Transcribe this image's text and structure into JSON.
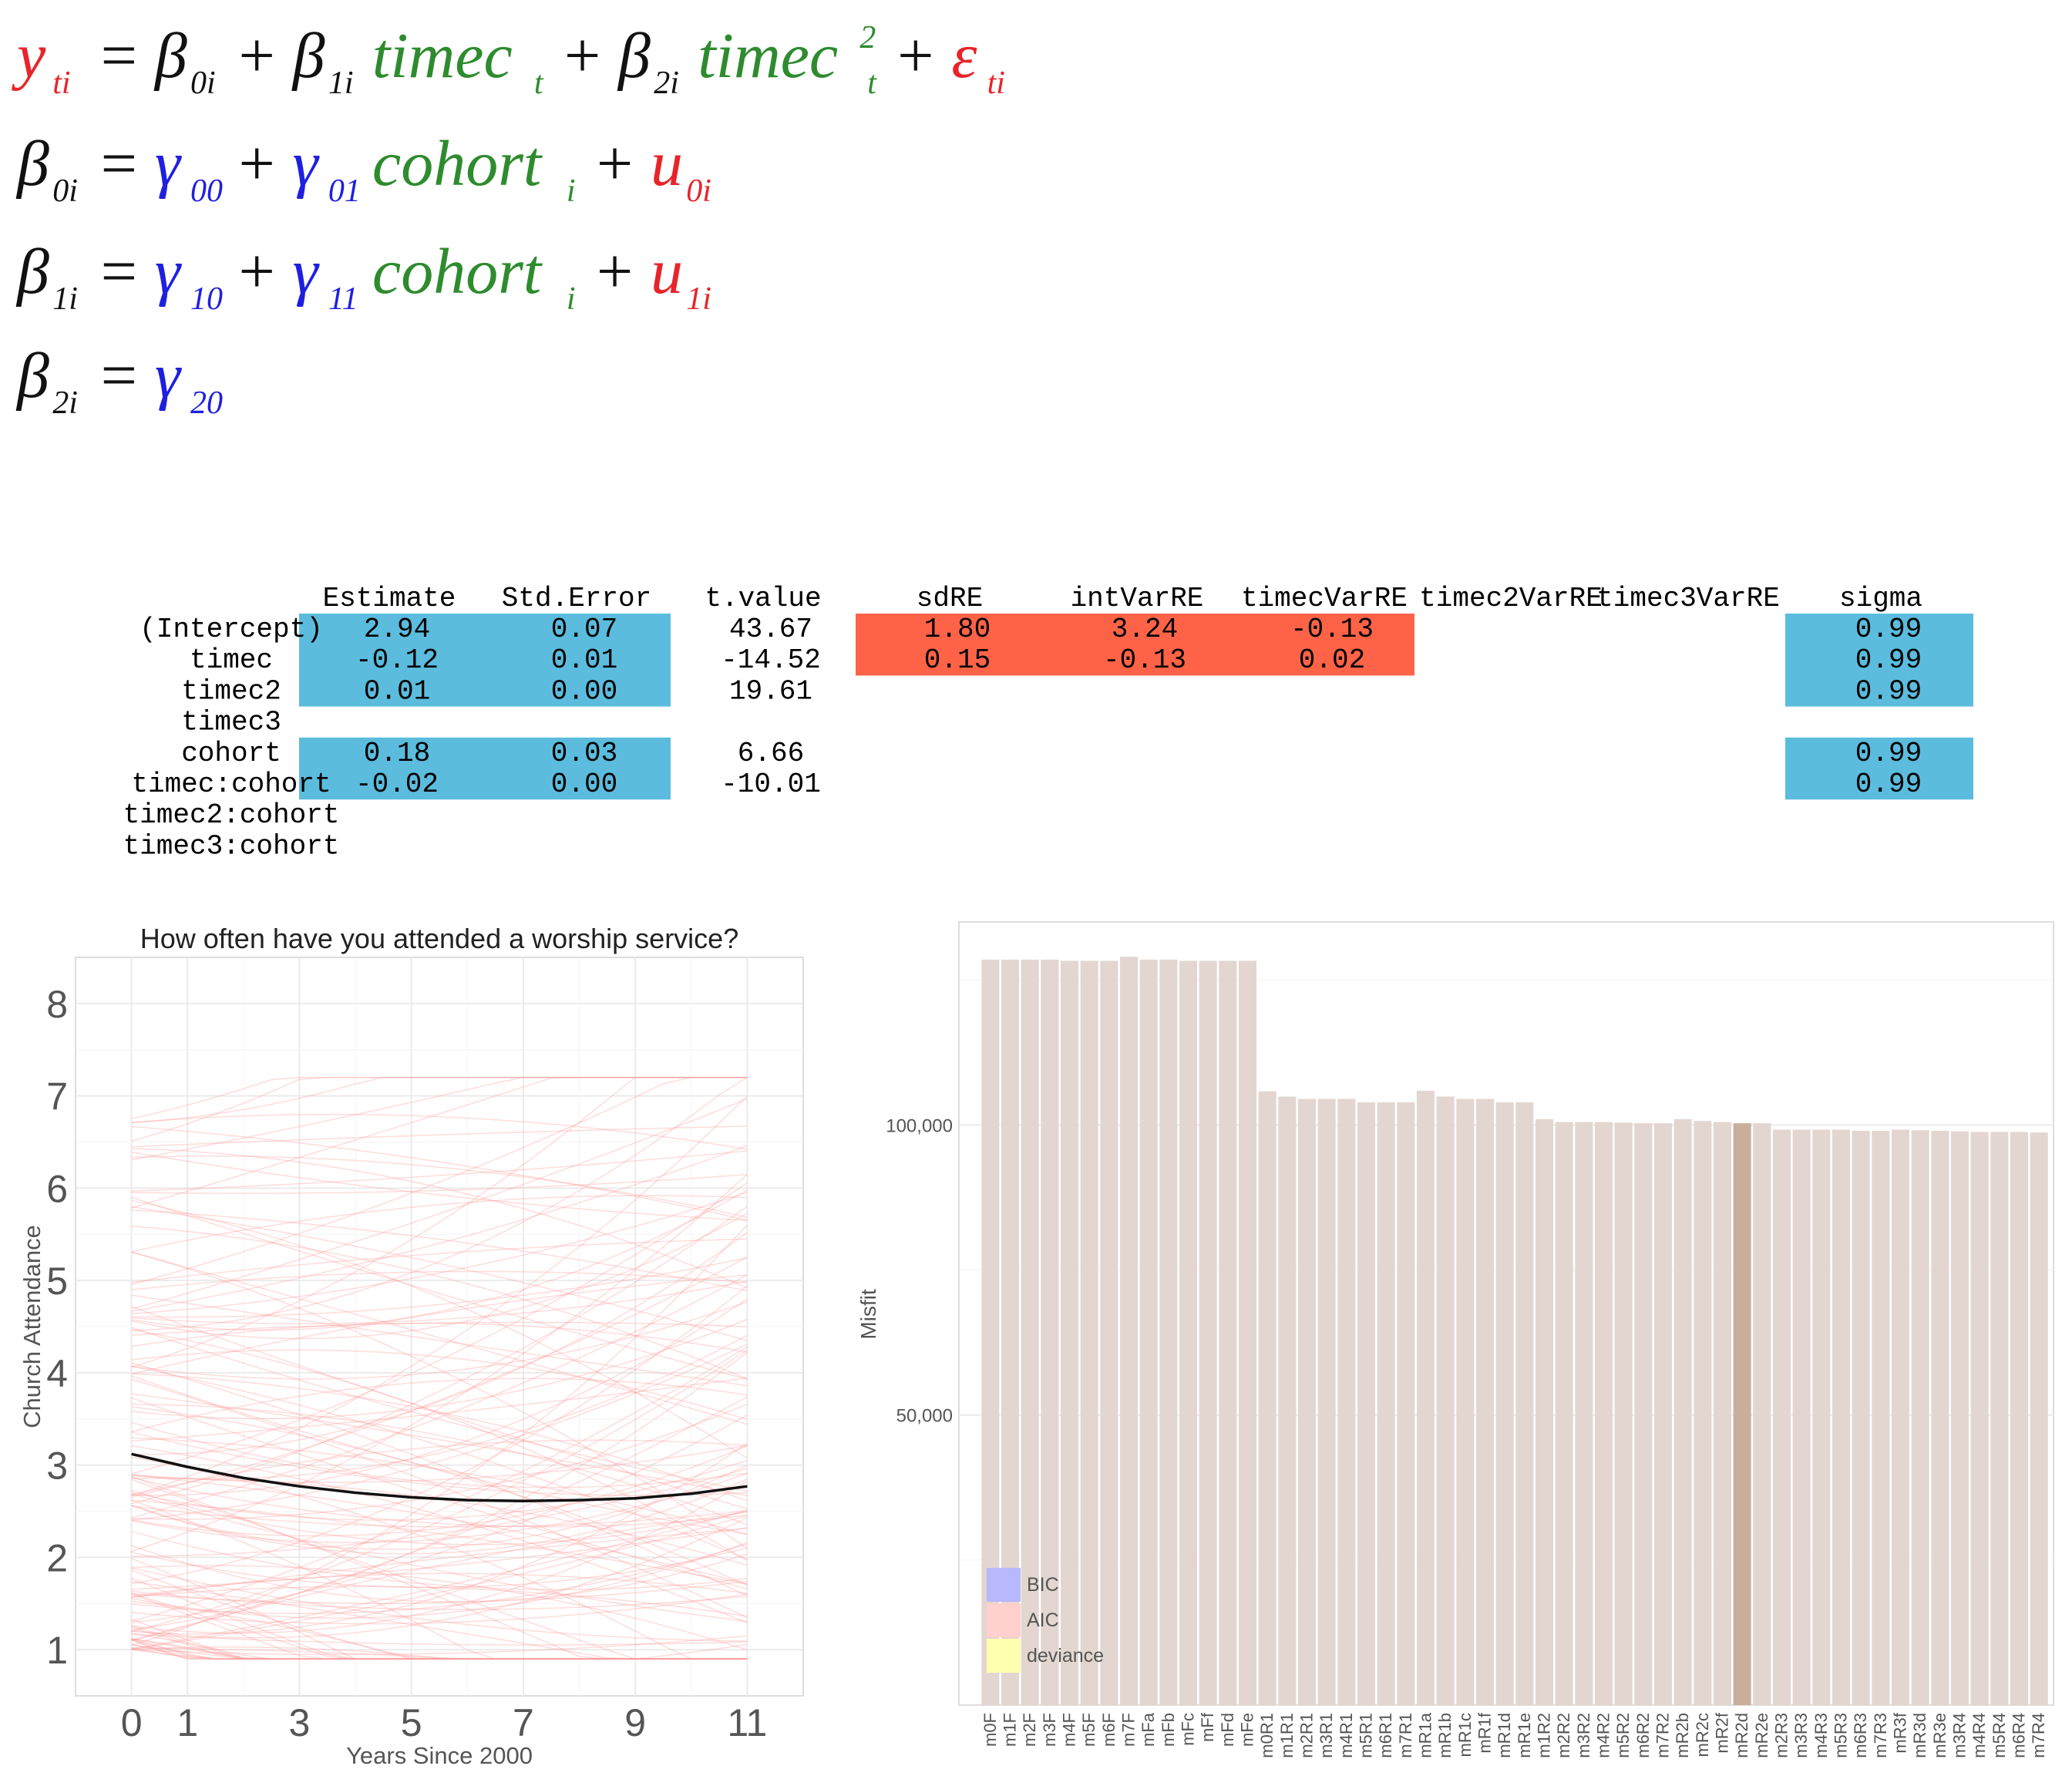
{
  "equations": [
    {
      "lhs": "y",
      "lhs_sub": "ti",
      "rhs": [
        {
          "t": "β",
          "sub": "0i",
          "c": "black"
        },
        {
          "t": " + ",
          "c": "black"
        },
        {
          "t": "β",
          "sub": "1i",
          "c": "black"
        },
        {
          "t": "timec",
          "sub": "t",
          "c": "green"
        },
        {
          "t": " + ",
          "c": "black"
        },
        {
          "t": "β",
          "sub": "2i",
          "c": "black"
        },
        {
          "t": "timec",
          "sup": "2",
          "sub": "t",
          "c": "green"
        },
        {
          "t": " + ",
          "c": "black"
        },
        {
          "t": "ε",
          "sub": "ti",
          "c": "red"
        }
      ]
    },
    {
      "lhs": "β",
      "lhs_sub": "0i",
      "rhs": [
        {
          "t": "γ",
          "sub": "00",
          "c": "blue"
        },
        {
          "t": " + ",
          "c": "black"
        },
        {
          "t": "γ",
          "sub": "01",
          "c": "blue"
        },
        {
          "t": "cohort",
          "sub": "i",
          "c": "green"
        },
        {
          "t": " + ",
          "c": "black"
        },
        {
          "t": "u",
          "sub": "0i",
          "c": "red"
        }
      ]
    },
    {
      "lhs": "β",
      "lhs_sub": "1i",
      "rhs": [
        {
          "t": "γ",
          "sub": "10",
          "c": "blue"
        },
        {
          "t": " + ",
          "c": "black"
        },
        {
          "t": "γ",
          "sub": "11",
          "c": "blue"
        },
        {
          "t": "cohort",
          "sub": "i",
          "c": "green"
        },
        {
          "t": " + ",
          "c": "black"
        },
        {
          "t": "u",
          "sub": "1i",
          "c": "red"
        }
      ]
    },
    {
      "lhs": "β",
      "lhs_sub": "2i",
      "rhs": [
        {
          "t": "γ",
          "sub": "20",
          "c": "blue"
        }
      ]
    }
  ],
  "colors": {
    "red": "#e8242a",
    "green": "#2e8b2e",
    "blue": "#1f1fe0",
    "black": "#111111",
    "cyan": "#5bbcdd",
    "orange": "#ff6347",
    "bar": "#e3d6d0",
    "bar_hl": "#c9ae9c"
  },
  "coef_table": {
    "columns": [
      "Estimate",
      "Std.Error",
      "t.value",
      "sdRE",
      "intVarRE",
      "timecVarRE",
      "timec2VarRE",
      "timec3VarRE",
      "sigma"
    ],
    "rows": [
      {
        "name": "(Intercept)",
        "vals": [
          "2.94",
          "0.07",
          "43.67",
          "1.80",
          "3.24",
          "-0.13",
          "",
          "",
          "0.99"
        ]
      },
      {
        "name": "timec",
        "vals": [
          "-0.12",
          "0.01",
          "-14.52",
          "0.15",
          "-0.13",
          "0.02",
          "",
          "",
          "0.99"
        ]
      },
      {
        "name": "timec2",
        "vals": [
          "0.01",
          "0.00",
          "19.61",
          "",
          "",
          "",
          "",
          "",
          "0.99"
        ]
      },
      {
        "name": "timec3",
        "vals": [
          "",
          "",
          "",
          "",
          "",
          "",
          "",
          "",
          ""
        ]
      },
      {
        "name": "cohort",
        "vals": [
          "0.18",
          "0.03",
          "6.66",
          "",
          "",
          "",
          "",
          "",
          "0.99"
        ]
      },
      {
        "name": "timec:cohort",
        "vals": [
          "-0.02",
          "0.00",
          "-10.01",
          "",
          "",
          "",
          "",
          "",
          "0.99"
        ]
      },
      {
        "name": "timec2:cohort",
        "vals": [
          "",
          "",
          "",
          "",
          "",
          "",
          "",
          "",
          ""
        ]
      },
      {
        "name": "timec3:cohort",
        "vals": [
          "",
          "",
          "",
          "",
          "",
          "",
          "",
          "",
          ""
        ]
      }
    ]
  },
  "chart_data": [
    {
      "type": "line",
      "title": "How often have you attended a worship service?",
      "xlabel": "Years Since 2000",
      "ylabel": "Church Attendance",
      "xlim": [
        -1,
        12
      ],
      "ylim": [
        0.5,
        8.5
      ],
      "x_ticks": [
        0,
        1,
        3,
        5,
        7,
        9,
        11
      ],
      "y_ticks": [
        1,
        2,
        3,
        4,
        5,
        6,
        7,
        8
      ],
      "grid": true,
      "series": [
        {
          "x": [
            0,
            1,
            2,
            3,
            4,
            5,
            6,
            7,
            8,
            9,
            10,
            11
          ],
          "y": [
            3.12,
            2.98,
            2.86,
            2.77,
            2.7,
            2.65,
            2.62,
            2.61,
            2.62,
            2.64,
            2.69,
            2.77
          ]
        }
      ],
      "individual_trajectories": "many faint red per-person quadratic curves between roughly 1 and 7"
    },
    {
      "type": "bar",
      "title": "",
      "xlabel": "",
      "ylabel": "Misfit",
      "ylim": [
        0,
        135000
      ],
      "y_ticks": [
        50000,
        100000
      ],
      "y_tick_labels": [
        "50,000",
        "100,000"
      ],
      "legend": {
        "position": "bottom-left",
        "entries": [
          {
            "name": "BIC",
            "color": "#b8b8ff"
          },
          {
            "name": "AIC",
            "color": "#ffd0cc"
          },
          {
            "name": "deviance",
            "color": "#ffffb0"
          }
        ]
      },
      "highlight": "mR2d",
      "categories": [
        "m0F",
        "m1F",
        "m2F",
        "m3F",
        "m4F",
        "m5F",
        "m6F",
        "m7F",
        "mFa",
        "mFb",
        "mFc",
        "mFf",
        "mFd",
        "mFe",
        "m0R1",
        "m1R1",
        "m2R1",
        "m3R1",
        "m4R1",
        "m5R1",
        "m6R1",
        "m7R1",
        "mR1a",
        "mR1b",
        "mR1c",
        "mR1f",
        "mR1d",
        "mR1e",
        "m1R2",
        "m2R2",
        "m3R2",
        "m4R2",
        "m5R2",
        "m6R2",
        "m7R2",
        "mR2b",
        "mR2c",
        "mR2f",
        "mR2d",
        "mR2e",
        "m2R3",
        "m3R3",
        "m4R3",
        "m5R3",
        "m6R3",
        "m7R3",
        "mR3f",
        "mR3d",
        "mR3e",
        "m3R4",
        "m4R4",
        "m5R4",
        "m6R4",
        "m7R4"
      ],
      "values": [
        128500,
        128500,
        128500,
        128500,
        128300,
        128300,
        128300,
        129000,
        128500,
        128500,
        128300,
        128300,
        128300,
        128300,
        105800,
        104900,
        104500,
        104500,
        104500,
        103900,
        103900,
        103900,
        105900,
        104900,
        104500,
        104500,
        103900,
        103900,
        101000,
        100500,
        100500,
        100500,
        100400,
        100300,
        100300,
        101000,
        100700,
        100500,
        100300,
        100300,
        99200,
        99200,
        99200,
        99200,
        99000,
        99000,
        99200,
        99100,
        99000,
        98900,
        98800,
        98800,
        98800,
        98700
      ]
    }
  ]
}
